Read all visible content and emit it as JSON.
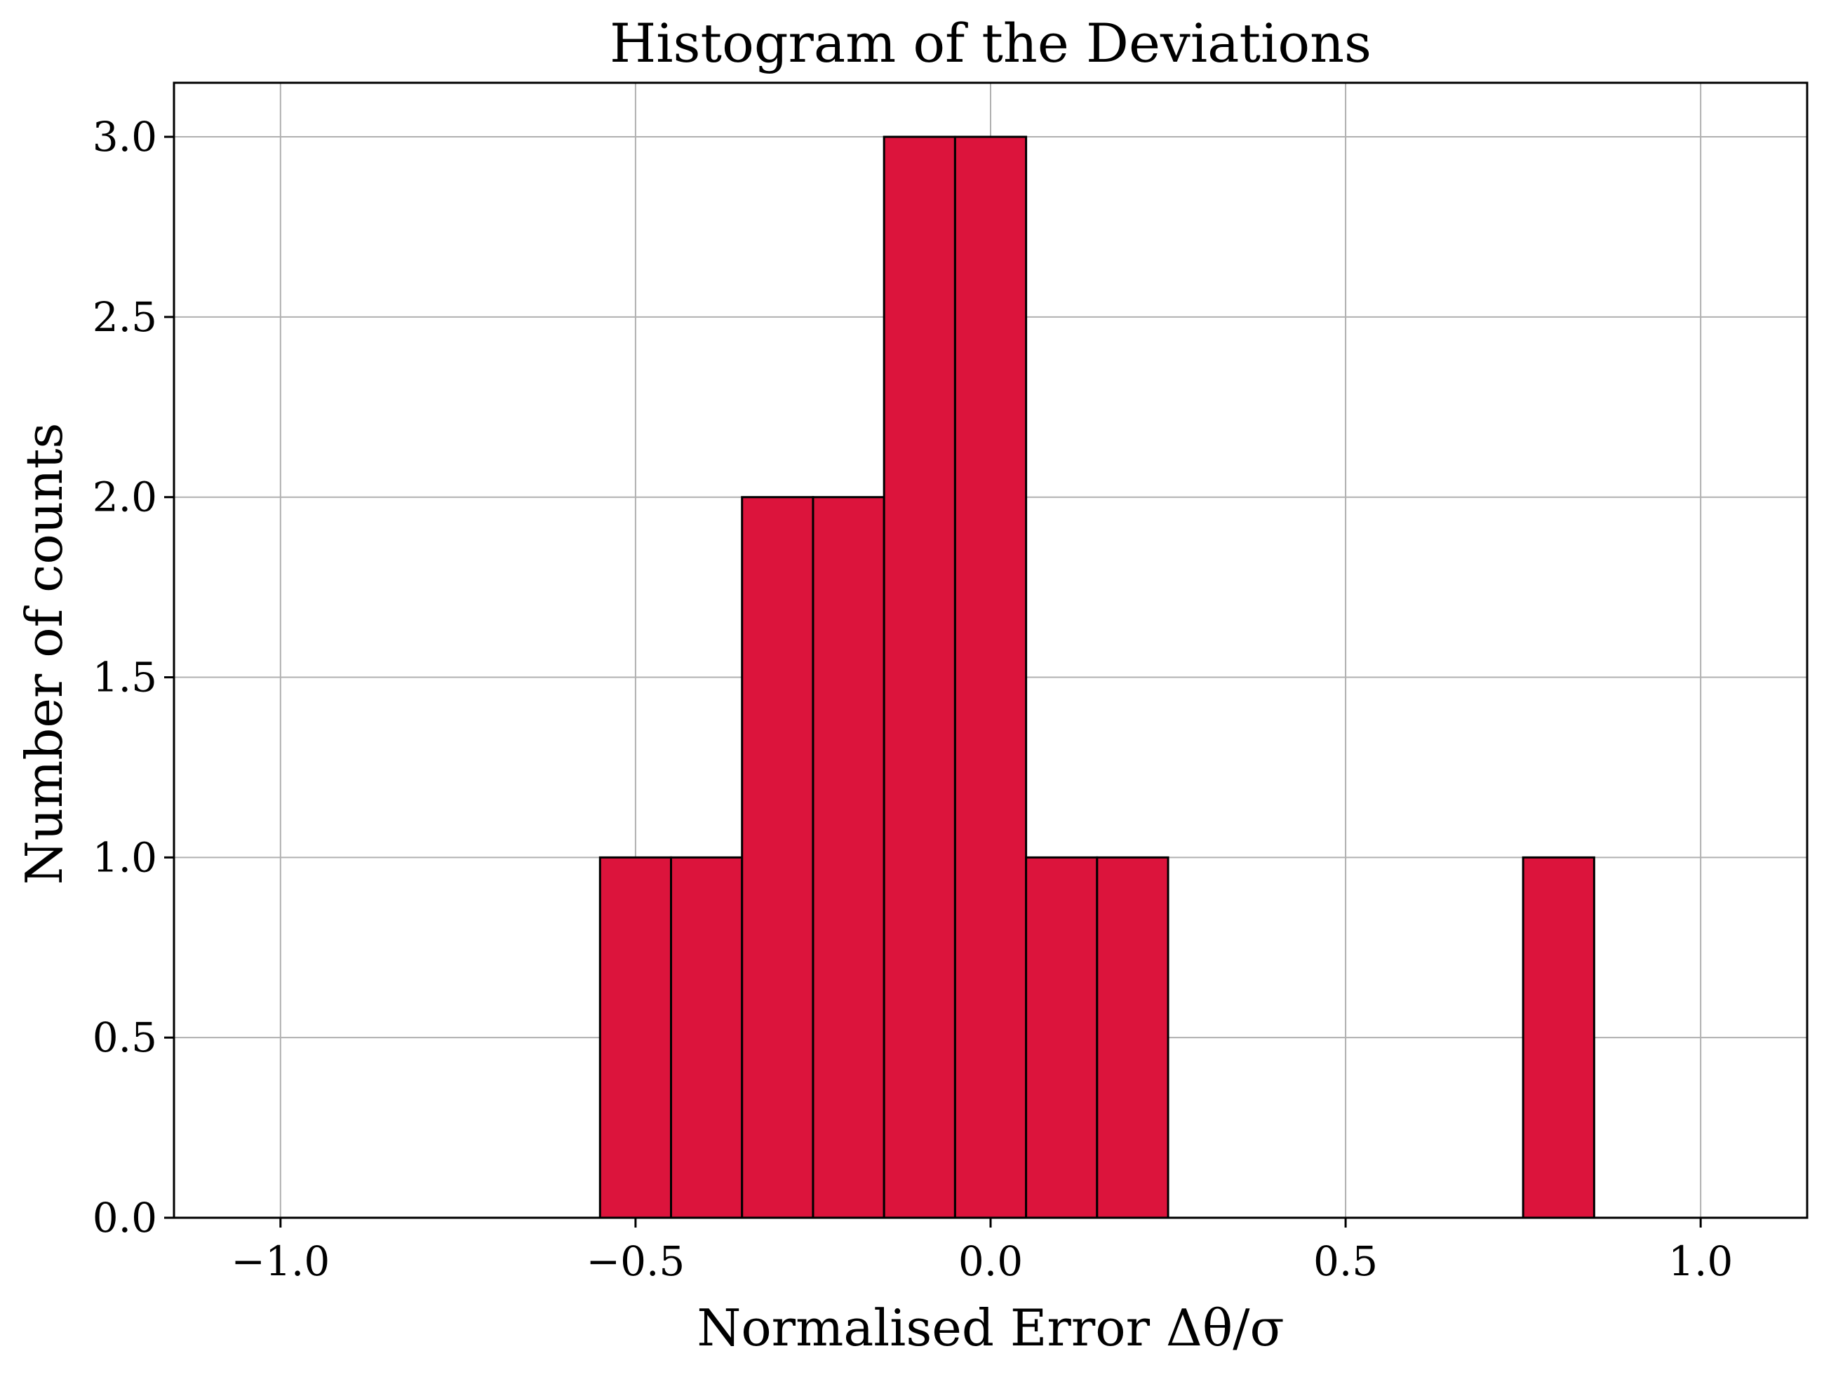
{
  "chart_data": {
    "type": "bar",
    "title": "Histogram of the Deviations",
    "xlabel": "Normalised Error Δθ/σ",
    "ylabel": "Number of counts",
    "xlim": [
      -1.15,
      1.15
    ],
    "ylim": [
      0,
      3.15
    ],
    "x_ticks": [
      -1.0,
      -0.5,
      0.0,
      0.5,
      1.0
    ],
    "x_tick_labels": [
      "−1.0",
      "−0.5",
      "0.0",
      "0.5",
      "1.0"
    ],
    "y_ticks": [
      0.0,
      0.5,
      1.0,
      1.5,
      2.0,
      2.5,
      3.0
    ],
    "y_tick_labels": [
      "0.0",
      "0.5",
      "1.0",
      "1.5",
      "2.0",
      "2.5",
      "3.0"
    ],
    "grid": true,
    "bar_color": "#DC143C",
    "edge_color": "#000000",
    "bin_edges": [
      -1.05,
      -0.95,
      -0.85,
      -0.75,
      -0.65,
      -0.55,
      -0.45,
      -0.35,
      -0.25,
      -0.15,
      -0.05,
      0.05,
      0.15,
      0.25,
      0.35,
      0.45,
      0.55,
      0.65,
      0.75,
      0.85,
      0.95,
      1.05
    ],
    "counts": [
      0,
      0,
      0,
      0,
      0,
      1,
      1,
      2,
      2,
      3,
      3,
      1,
      1,
      0,
      0,
      0,
      0,
      0,
      1,
      0,
      0
    ]
  }
}
